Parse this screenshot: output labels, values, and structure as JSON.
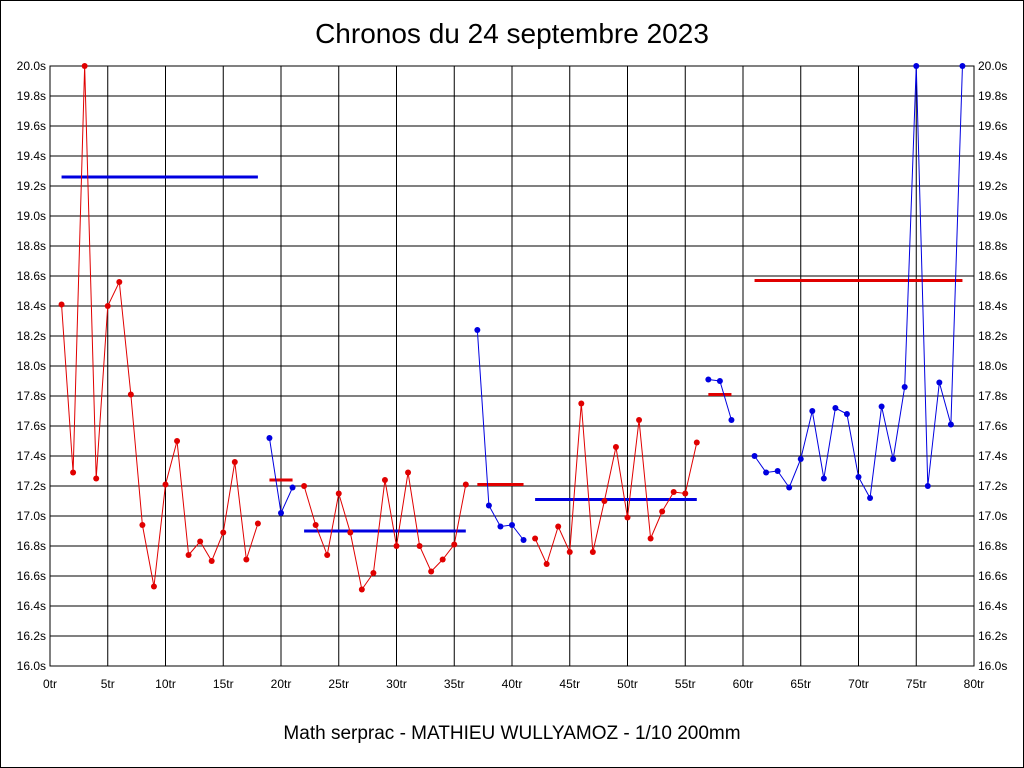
{
  "chart_data": {
    "type": "line",
    "title": "Chronos du 24 septembre 2023",
    "footer": "Math serprac - MATHIEU WULLYAMOZ - 1/10 200mm",
    "xlim": [
      0,
      80
    ],
    "ylim": [
      16.0,
      20.0
    ],
    "x_ticks": [
      0,
      5,
      10,
      15,
      20,
      25,
      30,
      35,
      40,
      45,
      50,
      55,
      60,
      65,
      70,
      75,
      80
    ],
    "x_tick_labels": [
      "0tr",
      "5tr",
      "10tr",
      "15tr",
      "20tr",
      "25tr",
      "30tr",
      "35tr",
      "40tr",
      "45tr",
      "50tr",
      "55tr",
      "60tr",
      "65tr",
      "70tr",
      "75tr",
      "80tr"
    ],
    "y_ticks": [
      16.0,
      16.2,
      16.4,
      16.6,
      16.8,
      17.0,
      17.2,
      17.4,
      17.6,
      17.8,
      18.0,
      18.2,
      18.4,
      18.6,
      18.8,
      19.0,
      19.2,
      19.4,
      19.6,
      19.8,
      20.0
    ],
    "y_tick_labels": [
      "16.0s",
      "16.2s",
      "16.4s",
      "16.6s",
      "16.8s",
      "17.0s",
      "17.2s",
      "17.4s",
      "17.6s",
      "17.8s",
      "18.0s",
      "18.2s",
      "18.4s",
      "18.6s",
      "18.8s",
      "19.0s",
      "19.2s",
      "19.4s",
      "19.6s",
      "19.8s",
      "20.0s"
    ],
    "grid": true,
    "colors": {
      "red": "#e00000",
      "blue": "#0000e0",
      "grid": "#000000"
    },
    "series": [
      {
        "color": "red",
        "x": [
          1,
          2,
          3,
          4,
          5,
          6,
          7,
          8,
          9,
          10,
          11,
          12,
          13,
          14,
          15,
          16,
          17,
          18
        ],
        "y": [
          18.41,
          17.29,
          20.0,
          17.25,
          18.4,
          18.56,
          17.81,
          16.94,
          16.53,
          17.21,
          17.5,
          16.74,
          16.83,
          16.7,
          16.89,
          17.36,
          16.71,
          16.95
        ]
      },
      {
        "color": "blue",
        "x": [
          19,
          20,
          21
        ],
        "y": [
          17.52,
          17.02,
          17.19
        ]
      },
      {
        "color": "red",
        "x": [
          22,
          23,
          24,
          25,
          26,
          27,
          28,
          29,
          30,
          31,
          32,
          33,
          34,
          35,
          36
        ],
        "y": [
          17.2,
          16.94,
          16.74,
          17.15,
          16.89,
          16.51,
          16.62,
          17.24,
          16.8,
          17.29,
          16.8,
          16.63,
          16.71,
          16.81,
          17.21
        ]
      },
      {
        "color": "blue",
        "x": [
          37,
          38,
          39,
          40,
          41
        ],
        "y": [
          18.24,
          17.07,
          16.93,
          16.94,
          16.84
        ]
      },
      {
        "color": "red",
        "x": [
          42,
          43,
          44,
          45,
          46,
          47,
          48,
          49,
          50,
          51,
          52,
          53,
          54,
          55,
          56
        ],
        "y": [
          16.85,
          16.68,
          16.93,
          16.76,
          17.75,
          16.76,
          17.1,
          17.46,
          16.99,
          17.64,
          16.85,
          17.03,
          17.16,
          17.15,
          17.49
        ]
      },
      {
        "color": "blue",
        "x": [
          57,
          58,
          59
        ],
        "y": [
          17.91,
          17.9,
          17.64
        ]
      },
      {
        "color": "blue",
        "x": [
          61,
          62,
          63,
          64,
          65,
          66,
          67,
          68,
          69,
          70,
          71,
          72,
          73,
          74,
          75,
          76,
          77,
          78,
          79
        ],
        "y": [
          17.4,
          17.29,
          17.3,
          17.19,
          17.38,
          17.7,
          17.25,
          17.72,
          17.68,
          17.26,
          17.12,
          17.73,
          17.38,
          17.86,
          20.0,
          17.2,
          17.89,
          17.61,
          20.0
        ]
      }
    ],
    "averages": [
      {
        "color": "blue",
        "x_start": 1,
        "x_end": 18,
        "y": 19.26
      },
      {
        "color": "red",
        "x_start": 19,
        "x_end": 21,
        "y": 17.24
      },
      {
        "color": "blue",
        "x_start": 22,
        "x_end": 36,
        "y": 16.9
      },
      {
        "color": "red",
        "x_start": 37,
        "x_end": 41,
        "y": 17.21
      },
      {
        "color": "blue",
        "x_start": 42,
        "x_end": 56,
        "y": 17.11
      },
      {
        "color": "red",
        "x_start": 57,
        "x_end": 59,
        "y": 17.81
      },
      {
        "color": "red",
        "x_start": 61,
        "x_end": 79,
        "y": 18.57
      }
    ]
  }
}
